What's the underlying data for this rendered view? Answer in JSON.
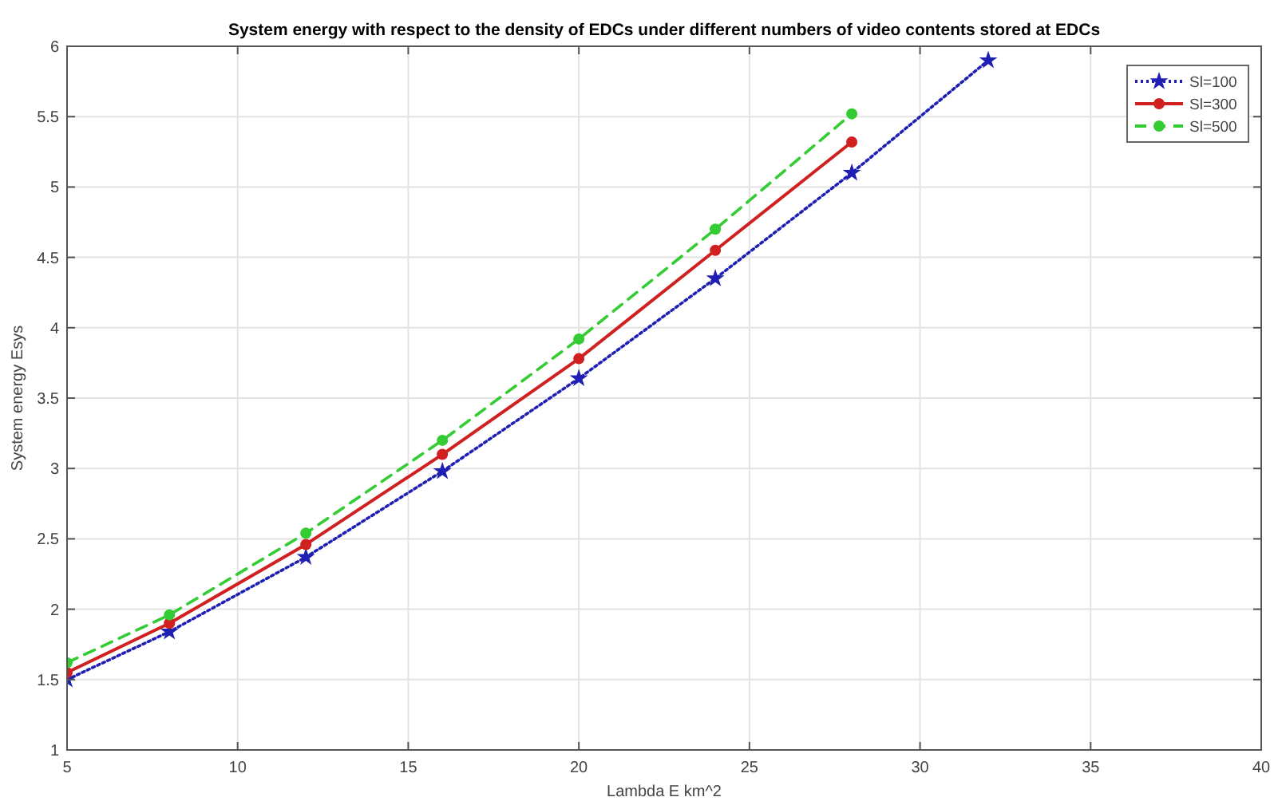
{
  "chart_data": {
    "type": "line",
    "title": "System energy with respect to the density of EDCs under different numbers of video contents stored at EDCs",
    "xlabel": "Lambda E km^2",
    "ylabel": "System energy Esys",
    "xlim": [
      5,
      40
    ],
    "xticks": [
      5,
      10,
      15,
      20,
      25,
      30,
      35,
      40
    ],
    "ylim": [
      1,
      6
    ],
    "yticks": [
      1,
      1.5,
      2,
      2.5,
      3,
      3.5,
      4,
      4.5,
      5,
      5.5,
      6
    ],
    "grid": true,
    "legend": "top right",
    "series": [
      {
        "name": "Sl=100",
        "color": "#1f1fb4",
        "line_style": "dotted",
        "marker": "star",
        "x": [
          5,
          8,
          12,
          16,
          20,
          24,
          28,
          32
        ],
        "values": [
          1.5,
          1.84,
          2.37,
          2.98,
          3.64,
          4.35,
          5.1,
          5.9
        ]
      },
      {
        "name": "Sl=300",
        "color": "#d02020",
        "line_style": "solid",
        "marker": "circle",
        "x": [
          5,
          8,
          12,
          16,
          20,
          24,
          28
        ],
        "values": [
          1.55,
          1.9,
          2.46,
          3.1,
          3.78,
          4.55,
          5.32
        ]
      },
      {
        "name": "Sl=500",
        "color": "#33cc33",
        "line_style": "dashed",
        "marker": "circle",
        "x": [
          5,
          8,
          12,
          16,
          20,
          24,
          28
        ],
        "values": [
          1.62,
          1.96,
          2.54,
          3.2,
          3.92,
          4.7,
          5.52
        ]
      }
    ]
  }
}
